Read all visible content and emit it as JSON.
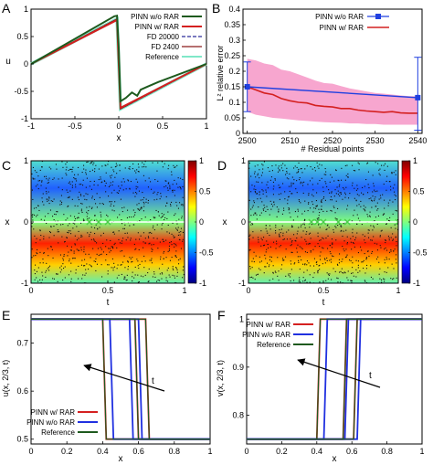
{
  "panel_letters": [
    "A",
    "B",
    "C",
    "D",
    "E",
    "F"
  ],
  "colors": {
    "pinn_wo_rar_A": "#1e5a1e",
    "pinn_w_rar": "#d42020",
    "fd_20000": "#2a2a9a",
    "fd_2400": "#8b1a1a",
    "reference_A": "#7fe8c8",
    "pinn_wo_rar_B": "#2040e0",
    "band_B": "#f7a6cf",
    "blue_EF": "#2030e0",
    "reference_EF": "#1e5a1e",
    "marker_green": "#4ccc4c"
  },
  "chart_data": [
    {
      "id": "A",
      "type": "line",
      "xlabel": "x",
      "ylabel": "u",
      "xlim": [
        -1,
        1
      ],
      "ylim": [
        -1,
        1
      ],
      "xticks": [
        "-1",
        "-0.5",
        "0",
        "0.5",
        "1"
      ],
      "yticks": [
        "-1",
        "-0.5",
        "0",
        "0.5",
        "1"
      ],
      "legend_position": "top-right",
      "legend": [
        "PINN w/o RAR",
        "PINN w/ RAR",
        "FD 20000",
        "FD 2400",
        "Reference"
      ],
      "series": [
        {
          "name": "Reference",
          "x": [
            -1,
            -0.02,
            0.02,
            1
          ],
          "y": [
            0,
            0.82,
            -0.82,
            0
          ]
        },
        {
          "name": "FD 20000",
          "x": [
            -1,
            -0.02,
            0.02,
            1
          ],
          "y": [
            0,
            0.82,
            -0.82,
            0
          ]
        },
        {
          "name": "FD 2400",
          "x": [
            -1,
            -0.02,
            0.02,
            1
          ],
          "y": [
            0,
            0.82,
            -0.82,
            0
          ]
        },
        {
          "name": "PINN w/ RAR",
          "x": [
            -1,
            -0.02,
            0.02,
            1
          ],
          "y": [
            0,
            0.8,
            -0.8,
            0
          ]
        },
        {
          "name": "PINN w/o RAR",
          "x": [
            -1,
            -0.05,
            -0.02,
            0.0,
            0.02,
            0.08,
            0.15,
            0.21,
            0.25,
            0.32,
            0.45,
            1
          ],
          "y": [
            0,
            0.87,
            0.88,
            0.3,
            -0.68,
            -0.62,
            -0.52,
            -0.58,
            -0.47,
            -0.42,
            -0.33,
            0
          ]
        }
      ]
    },
    {
      "id": "B",
      "type": "line",
      "xlabel": "# Residual points",
      "ylabel": "L² relative error",
      "xlim": [
        2499,
        2541
      ],
      "ylim": [
        0,
        0.4
      ],
      "xticks": [
        "2500",
        "2510",
        "2520",
        "2530",
        "2540"
      ],
      "yticks": [
        "0",
        "0.05",
        "0.1",
        "0.15",
        "0.2",
        "0.25",
        "0.3",
        "0.35",
        "0.4"
      ],
      "legend_position": "top-right",
      "legend": [
        "PINN w/o RAR",
        "PINN w/ RAR"
      ],
      "series": [
        {
          "name": "PINN w/o RAR",
          "x": [
            2500,
            2540
          ],
          "y": [
            0.15,
            0.115
          ],
          "err_low": [
            0.07,
            0.01
          ],
          "err_high": [
            0.23,
            0.245
          ]
        },
        {
          "name": "PINN w/ RAR",
          "x": [
            2500,
            2502,
            2504,
            2506,
            2508,
            2510,
            2512,
            2514,
            2516,
            2518,
            2520,
            2522,
            2524,
            2526,
            2528,
            2530,
            2532,
            2534,
            2536,
            2538,
            2540
          ],
          "y": [
            0.15,
            0.14,
            0.13,
            0.125,
            0.112,
            0.105,
            0.1,
            0.098,
            0.09,
            0.087,
            0.085,
            0.08,
            0.08,
            0.075,
            0.072,
            0.07,
            0.068,
            0.07,
            0.066,
            0.065,
            0.065
          ],
          "band_low": [
            0.07,
            0.06,
            0.055,
            0.05,
            0.048,
            0.045,
            0.042,
            0.04,
            0.038,
            0.036,
            0.035,
            0.034,
            0.032,
            0.032,
            0.03,
            0.03,
            0.028,
            0.028,
            0.028,
            0.028,
            0.028
          ],
          "band_high": [
            0.24,
            0.235,
            0.225,
            0.22,
            0.205,
            0.2,
            0.19,
            0.18,
            0.17,
            0.162,
            0.16,
            0.152,
            0.145,
            0.14,
            0.135,
            0.13,
            0.128,
            0.125,
            0.122,
            0.12,
            0.12
          ]
        }
      ]
    },
    {
      "id": "C",
      "type": "heatmap",
      "xlabel": "t",
      "ylabel": "x",
      "xlim": [
        0,
        1
      ],
      "ylim": [
        -1,
        1
      ],
      "xticks": [
        "0",
        "0.5",
        "1"
      ],
      "yticks": [
        "-1",
        "0",
        "1"
      ],
      "colorbar": {
        "min": -1,
        "max": 1,
        "ticks": [
          "-1",
          "-0.5",
          "0",
          "0.5",
          "1"
        ]
      },
      "markers_t": [
        0.38,
        0.44,
        0.5
      ]
    },
    {
      "id": "D",
      "type": "heatmap",
      "xlabel": "t",
      "ylabel": "x",
      "xlim": [
        0,
        1
      ],
      "ylim": [
        -1,
        1
      ],
      "xticks": [
        "0",
        "0.5",
        "1"
      ],
      "yticks": [
        "-1",
        "0",
        "1"
      ],
      "colorbar": {
        "min": -1,
        "max": 1,
        "ticks": [
          "-1",
          "-0.5",
          "0",
          "0.5",
          "1"
        ]
      },
      "markers_t": [
        0.42,
        0.46,
        0.5,
        0.6,
        0.66,
        1.0
      ]
    },
    {
      "id": "E",
      "type": "line",
      "xlabel": "x",
      "ylabel": "u(x, 2/3, t)",
      "xlim": [
        0,
        1
      ],
      "ylim": [
        0.49,
        0.76
      ],
      "xticks": [
        "0",
        "0.2",
        "0.4",
        "0.6",
        "0.8",
        "1"
      ],
      "yticks": [
        "0.5",
        "0.6",
        "0.7"
      ],
      "legend_position": "bottom-left",
      "legend": [
        "PINN w/ RAR",
        "PINN w/o RAR",
        "Reference"
      ],
      "arrow_label": "t",
      "series": [
        {
          "name": "PINN w/ RAR",
          "edges": [
            0.41,
            0.59,
            0.65
          ],
          "y_high": 0.75,
          "y_low": 0.5
        },
        {
          "name": "PINN w/o RAR",
          "edges": [
            0.45,
            0.56,
            0.61
          ],
          "y_high": 0.75,
          "y_low": 0.5
        },
        {
          "name": "Reference",
          "edges": [
            0.41,
            0.59,
            0.65
          ],
          "y_high": 0.75,
          "y_low": 0.5
        }
      ]
    },
    {
      "id": "F",
      "type": "line",
      "xlabel": "x",
      "ylabel": "v(x, 2/3, t)",
      "xlim": [
        0,
        1
      ],
      "ylim": [
        0.74,
        1.01
      ],
      "xticks": [
        "0",
        "0.2",
        "0.4",
        "0.6",
        "0.8",
        "1"
      ],
      "yticks": [
        "0.8",
        "0.9",
        "1"
      ],
      "legend_position": "top-left",
      "legend": [
        "PINN w/ RAR",
        "PINN w/o RAR",
        "Reference"
      ],
      "arrow_label": "t",
      "series": [
        {
          "name": "PINN w/ RAR",
          "edges": [
            0.41,
            0.56,
            0.62
          ],
          "y_high": 1.0,
          "y_low": 0.75
        },
        {
          "name": "PINN w/o RAR",
          "edges": [
            0.45,
            0.57,
            0.64
          ],
          "y_high": 1.0,
          "y_low": 0.75
        },
        {
          "name": "Reference",
          "edges": [
            0.41,
            0.56,
            0.62
          ],
          "y_high": 1.0,
          "y_low": 0.75
        }
      ]
    }
  ]
}
